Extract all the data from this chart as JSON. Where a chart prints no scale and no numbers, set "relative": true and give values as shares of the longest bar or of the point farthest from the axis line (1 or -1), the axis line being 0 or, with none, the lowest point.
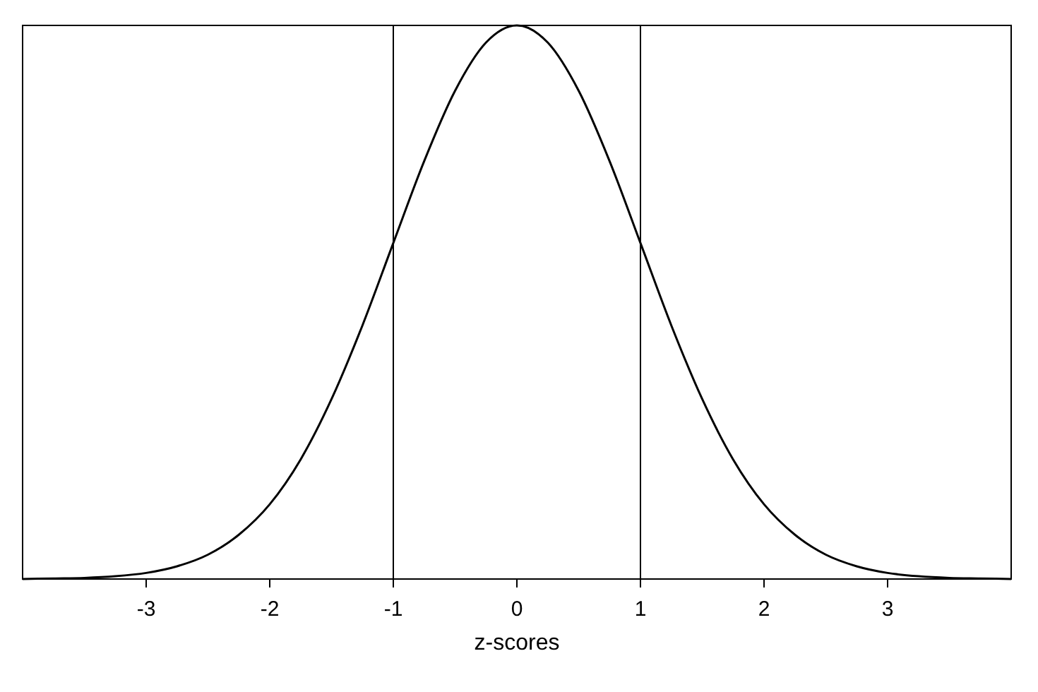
{
  "chart_data": {
    "type": "line",
    "relative": true,
    "xlabel": "z-scores",
    "xlim": [
      -4,
      4
    ],
    "xticks": [
      -3,
      -2,
      -1,
      0,
      1,
      2,
      3
    ],
    "x": [
      -4,
      -3.75,
      -3.5,
      -3.25,
      -3,
      -2.75,
      -2.5,
      -2.25,
      -2,
      -1.75,
      -1.5,
      -1.25,
      -1,
      -0.75,
      -0.5,
      -0.25,
      0,
      0.25,
      0.5,
      0.75,
      1,
      1.25,
      1.5,
      1.75,
      2,
      2.25,
      2.5,
      2.75,
      3,
      3.25,
      3.5,
      3.75,
      4
    ],
    "series": [
      {
        "color": "#000000",
        "values": [
          0,
          0.001,
          0.002,
          0.005,
          0.011,
          0.023,
          0.044,
          0.08,
          0.135,
          0.216,
          0.325,
          0.458,
          0.607,
          0.755,
          0.882,
          0.969,
          1,
          0.969,
          0.882,
          0.755,
          0.607,
          0.458,
          0.325,
          0.216,
          0.135,
          0.08,
          0.044,
          0.023,
          0.011,
          0.005,
          0.002,
          0.001,
          0
        ]
      }
    ],
    "ref_lines": [
      {
        "axis": "x",
        "value": -1,
        "color": "#000000"
      },
      {
        "axis": "x",
        "value": 1,
        "color": "#000000"
      }
    ],
    "grid": false
  }
}
